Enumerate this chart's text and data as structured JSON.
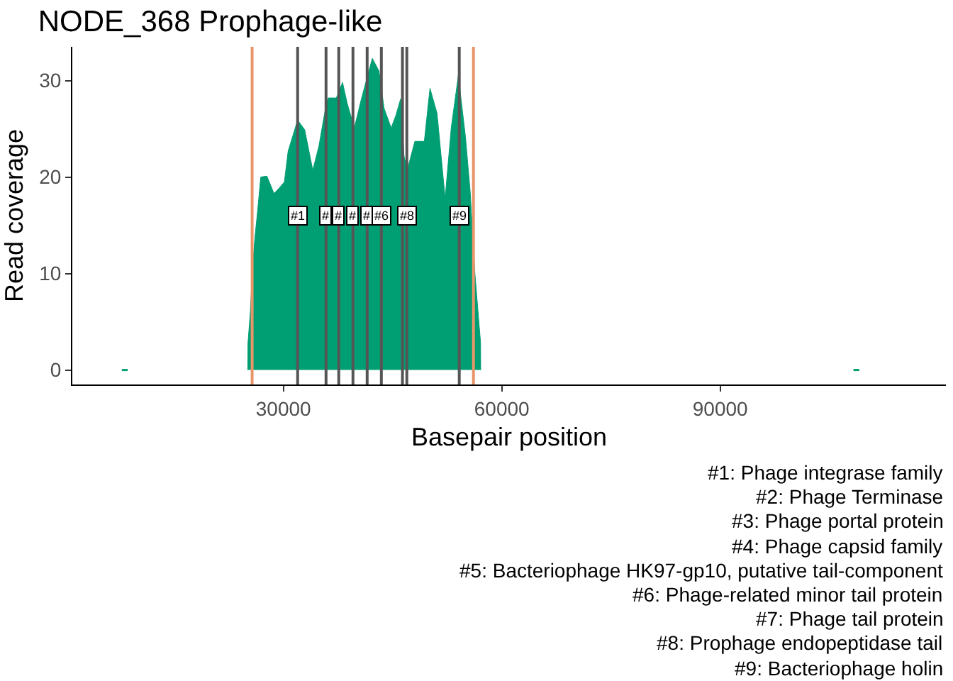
{
  "chart_data": {
    "type": "area",
    "title": "NODE_368 Prophage-like",
    "xlabel": "Basepair position",
    "ylabel": "Read coverage",
    "xlim": [
      1000,
      121000
    ],
    "xticks": [
      30000,
      60000,
      90000
    ],
    "ylim": [
      -1.5,
      33.5
    ],
    "yticks": [
      0,
      10,
      20,
      30
    ],
    "grid": false,
    "legend": false,
    "series": [
      {
        "color": "#009e73",
        "x": [
          25100,
          25130,
          25450,
          25780,
          26100,
          26430,
          26880,
          27730,
          28700,
          29350,
          30130,
          30650,
          31950,
          32920,
          34030,
          34870,
          35840,
          36170,
          37270,
          38120,
          38770,
          39740,
          40710,
          41560,
          42210,
          43120,
          43830,
          44800,
          45450,
          46100,
          46560,
          47010,
          48050,
          49350,
          50130,
          51100,
          52210,
          53050,
          54020,
          55000,
          55650,
          56300,
          57080,
          57100
        ],
        "values": [
          0,
          2.8,
          6.0,
          10.9,
          13.9,
          16.3,
          20.0,
          20.1,
          18.3,
          18.8,
          19.5,
          22.7,
          25.9,
          24.9,
          20.7,
          23.2,
          27.4,
          28.2,
          28.2,
          29.8,
          27.6,
          25.1,
          28.1,
          30.5,
          32.3,
          31.0,
          27.1,
          25.1,
          26.4,
          28.1,
          22.2,
          20.7,
          23.7,
          23.7,
          29.2,
          26.6,
          17.8,
          25.1,
          30.5,
          24.2,
          18.5,
          10.0,
          2.8,
          0
        ]
      },
      {
        "type": "line",
        "color": "#009e73",
        "x": [
          7800,
          8600,
          9000,
          108300,
          109100
        ],
        "values": [
          0,
          0,
          null,
          0,
          0
        ]
      }
    ],
    "ref_lines": [
      {
        "axis": "x",
        "value": 25700,
        "color": "#e8956a"
      },
      {
        "axis": "x",
        "value": 56100,
        "color": "#e8956a"
      },
      {
        "axis": "x",
        "value": 31950,
        "color": "#555555"
      },
      {
        "axis": "x",
        "value": 35850,
        "color": "#555555"
      },
      {
        "axis": "x",
        "value": 37600,
        "color": "#555555"
      },
      {
        "axis": "x",
        "value": 39550,
        "color": "#555555"
      },
      {
        "axis": "x",
        "value": 41500,
        "color": "#555555"
      },
      {
        "axis": "x",
        "value": 43450,
        "color": "#555555"
      },
      {
        "axis": "x",
        "value": 46350,
        "color": "#555555"
      },
      {
        "axis": "x",
        "value": 46950,
        "color": "#555555"
      },
      {
        "axis": "x",
        "value": 54150,
        "color": "#555555"
      }
    ],
    "annotations": [
      {
        "text": "#1",
        "x": 31950,
        "y": 16
      },
      {
        "text": "#",
        "x": 35850,
        "y": 16
      },
      {
        "text": "#",
        "x": 37600,
        "y": 16
      },
      {
        "text": "#",
        "x": 39550,
        "y": 16
      },
      {
        "text": "#",
        "x": 41500,
        "y": 16
      },
      {
        "text": "#6",
        "x": 43450,
        "y": 16
      },
      {
        "text": "#8",
        "x": 46950,
        "y": 16
      },
      {
        "text": "#9",
        "x": 54150,
        "y": 16
      },
      "#1: Phage integrase family",
      "#2: Phage Terminase",
      "#3: Phage portal protein",
      "#4: Phage capsid family",
      "#5: Bacteriophage HK97-gp10, putative tail-component",
      "#6: Phage-related minor tail protein",
      "#7: Phage tail protein",
      "#8: Prophage endopeptidase tail",
      "#9: Bacteriophage holin"
    ]
  }
}
